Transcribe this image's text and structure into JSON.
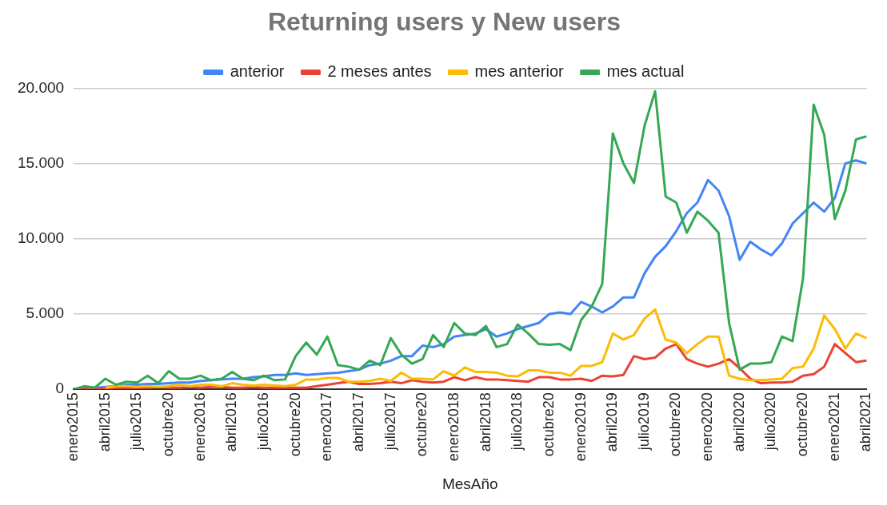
{
  "chart_data": {
    "type": "line",
    "title": "Returning users y New users",
    "xlabel": "MesAño",
    "categories": [
      "enero2015",
      null,
      null,
      "abril2015",
      null,
      null,
      "julio2015",
      null,
      null,
      "octubre20",
      null,
      null,
      "enero2016",
      null,
      null,
      "abril2016",
      null,
      null,
      "julio2016",
      null,
      null,
      "octubre20",
      null,
      null,
      "enero2017",
      null,
      null,
      "abril2017",
      null,
      null,
      "julio2017",
      null,
      null,
      "octubre20",
      null,
      null,
      "enero2018",
      null,
      null,
      "abril2018",
      null,
      null,
      "julio2018",
      null,
      null,
      "octubre20",
      null,
      null,
      "enero2019",
      null,
      null,
      "abril2019",
      null,
      null,
      "julio2019",
      null,
      null,
      "octubre20",
      null,
      null,
      "enero2020",
      null,
      null,
      "abril2020",
      null,
      null,
      "julio2020",
      null,
      null,
      "octubre20",
      null,
      null,
      "enero2021",
      null,
      null,
      "abril2021"
    ],
    "series": [
      {
        "name": "anterior",
        "color": "#4285f4",
        "values": [
          0,
          100,
          100,
          150,
          200,
          300,
          300,
          350,
          350,
          400,
          450,
          450,
          550,
          600,
          650,
          700,
          700,
          800,
          850,
          950,
          950,
          1050,
          950,
          1000,
          1050,
          1100,
          1200,
          1300,
          1600,
          1700,
          1900,
          2200,
          2200,
          2900,
          2800,
          3000,
          3500,
          3600,
          3700,
          4000,
          3500,
          3700,
          4000,
          4200,
          4400,
          5000,
          5100,
          5000,
          5800,
          5500,
          5100,
          5500,
          6100,
          6100,
          7700,
          8800,
          9500,
          10500,
          11700,
          12400,
          13900,
          13200,
          11500,
          8600,
          9800,
          9300,
          8900,
          9700,
          11000,
          11700,
          12400,
          11800,
          12700,
          15000,
          15200,
          15000
        ]
      },
      {
        "name": "2 meses antes",
        "color": "#ea4335",
        "values": [
          0,
          0,
          0,
          50,
          100,
          100,
          100,
          100,
          150,
          100,
          100,
          150,
          100,
          150,
          150,
          100,
          100,
          150,
          100,
          100,
          100,
          100,
          100,
          200,
          300,
          400,
          500,
          350,
          350,
          400,
          500,
          400,
          600,
          500,
          450,
          500,
          800,
          600,
          800,
          650,
          650,
          600,
          550,
          500,
          800,
          800,
          650,
          650,
          700,
          550,
          900,
          850,
          950,
          2200,
          2000,
          2100,
          2700,
          3000,
          2000,
          1700,
          1500,
          1700,
          2000,
          1400,
          700,
          400,
          450,
          450,
          500,
          900,
          1000,
          1500,
          3000,
          2400,
          1800,
          1900
        ]
      },
      {
        "name": "mes anterior",
        "color": "#fbbc04",
        "values": [
          null,
          null,
          null,
          100,
          200,
          200,
          150,
          200,
          150,
          200,
          300,
          200,
          300,
          300,
          200,
          400,
          300,
          250,
          300,
          250,
          200,
          300,
          650,
          650,
          750,
          750,
          500,
          500,
          550,
          700,
          550,
          1100,
          700,
          700,
          650,
          1200,
          900,
          1450,
          1150,
          1150,
          1100,
          900,
          850,
          1250,
          1250,
          1100,
          1100,
          900,
          1550,
          1550,
          1800,
          3700,
          3300,
          3600,
          4700,
          5300,
          3300,
          3100,
          2400,
          3000,
          3500,
          3500,
          900,
          700,
          600,
          600,
          650,
          700,
          1400,
          1500,
          2700,
          4900,
          4000,
          2700,
          3700,
          3400
        ]
      },
      {
        "name": "mes actual",
        "color": "#34a853",
        "values": [
          0,
          200,
          100,
          700,
          300,
          500,
          450,
          900,
          400,
          1200,
          700,
          700,
          900,
          600,
          700,
          1150,
          700,
          600,
          900,
          600,
          650,
          2200,
          3100,
          2300,
          3500,
          1600,
          1500,
          1300,
          1900,
          1600,
          3400,
          2300,
          1700,
          2000,
          3600,
          2800,
          4400,
          3700,
          3600,
          4200,
          2800,
          3000,
          4300,
          3700,
          3000,
          2950,
          3000,
          2600,
          4600,
          5500,
          7000,
          17000,
          15000,
          13700,
          17500,
          19800,
          12800,
          12400,
          10400,
          11800,
          11200,
          10400,
          4400,
          1300,
          1700,
          1700,
          1800,
          3500,
          3200,
          7400,
          18900,
          16900,
          11300,
          13200,
          16600,
          16800
        ]
      }
    ],
    "ylim": [
      0,
      20000
    ],
    "yticks": [
      0,
      {
        "value": 5000,
        "label": "5.000"
      },
      {
        "value": 10000,
        "label": "10.000"
      },
      {
        "value": 15000,
        "label": "15.000"
      },
      {
        "value": 20000,
        "label": "20.000"
      }
    ],
    "grid": "y",
    "legend": "top",
    "marker": "none",
    "line_style": "solid"
  }
}
